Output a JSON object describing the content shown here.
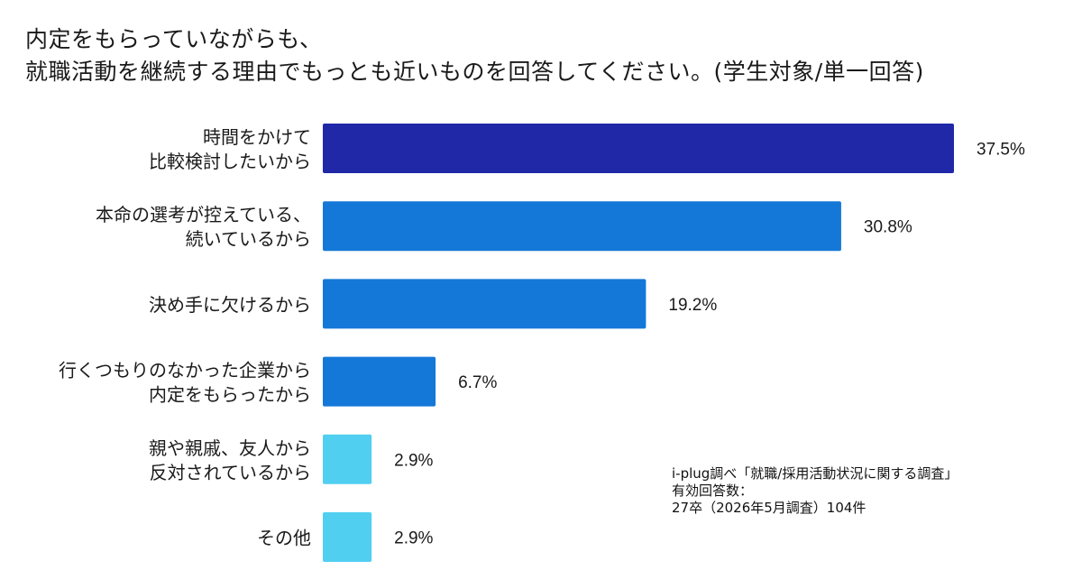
{
  "title_lines": [
    "内定をもらっていながらも、",
    "就職活動を継続する理由でもっとも近いものを回答してください。(学生対象/単一回答)"
  ],
  "chart_data": {
    "type": "bar",
    "orientation": "horizontal",
    "categories": [
      [
        "時間をかけて",
        "比較検討したいから"
      ],
      [
        "本命の選考が控えている、",
        "続いているから"
      ],
      [
        "決め手に欠けるから"
      ],
      [
        "行くつもりのなかった企業から",
        "内定をもらったから"
      ],
      [
        "親や親戚、友人から",
        "反対されているから"
      ],
      [
        "その他"
      ]
    ],
    "values": [
      37.5,
      30.8,
      19.2,
      6.7,
      2.9,
      2.9
    ],
    "value_labels": [
      "37.5%",
      "30.8%",
      "19.2%",
      "6.7%",
      "2.9%",
      "2.9%"
    ],
    "bar_colors": [
      "#2028a8",
      "#1478d8",
      "#1478d8",
      "#1478d8",
      "#50cff0",
      "#50cff0"
    ],
    "xlim": [
      0,
      37.5
    ],
    "grid": false,
    "legend": "none"
  },
  "source_lines": [
    "i-plug調べ「就職/採用活動状況に関する調査」",
    "有効回答数：",
    "27卒（2026年5月調査）104件"
  ]
}
